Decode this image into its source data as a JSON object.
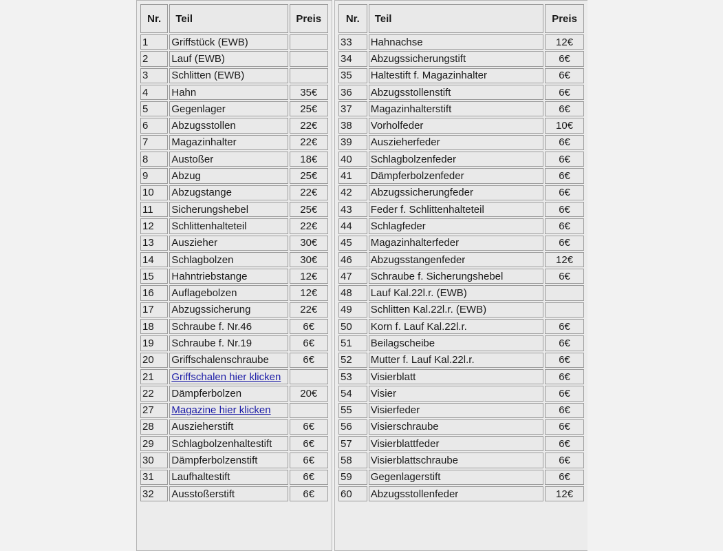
{
  "headers": {
    "nr": "Nr.",
    "teil": "Teil",
    "preis": "Preis"
  },
  "left": [
    {
      "nr": "1",
      "teil": "Griffstück (EWB)",
      "preis": ""
    },
    {
      "nr": "2",
      "teil": "Lauf (EWB)",
      "preis": ""
    },
    {
      "nr": "3",
      "teil": "Schlitten (EWB)",
      "preis": ""
    },
    {
      "nr": "4",
      "teil": "Hahn",
      "preis": "35€"
    },
    {
      "nr": "5",
      "teil": "Gegenlager",
      "preis": "25€"
    },
    {
      "nr": "6",
      "teil": "Abzugsstollen",
      "preis": "22€"
    },
    {
      "nr": "7",
      "teil": "Magazinhalter",
      "preis": "22€"
    },
    {
      "nr": "8",
      "teil": "Austoßer",
      "preis": "18€"
    },
    {
      "nr": "9",
      "teil": "Abzug",
      "preis": "25€"
    },
    {
      "nr": "10",
      "teil": "Abzugstange",
      "preis": "22€"
    },
    {
      "nr": "11",
      "teil": "Sicherungshebel",
      "preis": "25€"
    },
    {
      "nr": "12",
      "teil": "Schlittenhalteteil",
      "preis": "22€"
    },
    {
      "nr": "13",
      "teil": "Auszieher",
      "preis": "30€"
    },
    {
      "nr": "14",
      "teil": "Schlagbolzen",
      "preis": "30€"
    },
    {
      "nr": "15",
      "teil": "Hahntriebstange",
      "preis": "12€"
    },
    {
      "nr": "16",
      "teil": "Auflagebolzen",
      "preis": "12€"
    },
    {
      "nr": "17",
      "teil": "Abzugssicherung",
      "preis": "22€"
    },
    {
      "nr": "18",
      "teil": "Schraube f. Nr.46",
      "preis": "6€"
    },
    {
      "nr": "19",
      "teil": "Schraube f. Nr.19",
      "preis": "6€"
    },
    {
      "nr": "20",
      "teil": "Griffschalenschraube",
      "preis": "6€"
    },
    {
      "nr": "21",
      "teil": "Griffschalen hier klicken",
      "preis": "",
      "link": true
    },
    {
      "nr": "22",
      "teil": "Dämpferbolzen",
      "preis": "20€"
    },
    {
      "nr": "27",
      "teil": "Magazine hier klicken",
      "preis": "",
      "link": true
    },
    {
      "nr": "28",
      "teil": "Auszieherstift",
      "preis": "6€"
    },
    {
      "nr": "29",
      "teil": "Schlagbolzenhaltestift",
      "preis": "6€"
    },
    {
      "nr": "30",
      "teil": "Dämpferbolzenstift",
      "preis": "6€"
    },
    {
      "nr": "31",
      "teil": "Laufhaltestift",
      "preis": "6€"
    },
    {
      "nr": "32",
      "teil": "Ausstoßerstift",
      "preis": "6€"
    }
  ],
  "right": [
    {
      "nr": "33",
      "teil": "Hahnachse",
      "preis": "12€"
    },
    {
      "nr": "34",
      "teil": "Abzugssicherungstift",
      "preis": "6€"
    },
    {
      "nr": "35",
      "teil": "Haltestift f. Magazinhalter",
      "preis": "6€"
    },
    {
      "nr": "36",
      "teil": "Abzugsstollenstift",
      "preis": "6€"
    },
    {
      "nr": "37",
      "teil": "Magazinhalterstift",
      "preis": "6€"
    },
    {
      "nr": "38",
      "teil": "Vorholfeder",
      "preis": "10€"
    },
    {
      "nr": "39",
      "teil": "Auszieherfeder",
      "preis": "6€"
    },
    {
      "nr": "40",
      "teil": "Schlagbolzenfeder",
      "preis": "6€"
    },
    {
      "nr": "41",
      "teil": "Dämpferbolzenfeder",
      "preis": "6€"
    },
    {
      "nr": "42",
      "teil": "Abzugssicherungfeder",
      "preis": "6€"
    },
    {
      "nr": "43",
      "teil": "Feder f. Schlittenhalteteil",
      "preis": "6€"
    },
    {
      "nr": "44",
      "teil": "Schlagfeder",
      "preis": "6€"
    },
    {
      "nr": "45",
      "teil": "Magazinhalterfeder",
      "preis": "6€"
    },
    {
      "nr": "46",
      "teil": "Abzugsstangenfeder",
      "preis": "12€"
    },
    {
      "nr": "47",
      "teil": "Schraube f. Sicherungshebel",
      "preis": "6€"
    },
    {
      "nr": "48",
      "teil": "Lauf Kal.22l.r. (EWB)",
      "preis": ""
    },
    {
      "nr": "49",
      "teil": "Schlitten Kal.22l.r. (EWB)",
      "preis": ""
    },
    {
      "nr": "50",
      "teil": "Korn f. Lauf Kal.22l.r.",
      "preis": "6€"
    },
    {
      "nr": "51",
      "teil": "Beilagscheibe",
      "preis": "6€"
    },
    {
      "nr": "52",
      "teil": "Mutter f. Lauf Kal.22l.r.",
      "preis": "6€"
    },
    {
      "nr": "53",
      "teil": "Visierblatt",
      "preis": "6€"
    },
    {
      "nr": "54",
      "teil": "Visier",
      "preis": "6€"
    },
    {
      "nr": "55",
      "teil": "Visierfeder",
      "preis": "6€"
    },
    {
      "nr": "56",
      "teil": "Visierschraube",
      "preis": "6€"
    },
    {
      "nr": "57",
      "teil": "Visierblattfeder",
      "preis": "6€"
    },
    {
      "nr": "58",
      "teil": "Visierblattschraube",
      "preis": "6€"
    },
    {
      "nr": "59",
      "teil": "Gegenlagerstift",
      "preis": "6€"
    },
    {
      "nr": "60",
      "teil": "Abzugsstollenfeder",
      "preis": "12€"
    }
  ]
}
